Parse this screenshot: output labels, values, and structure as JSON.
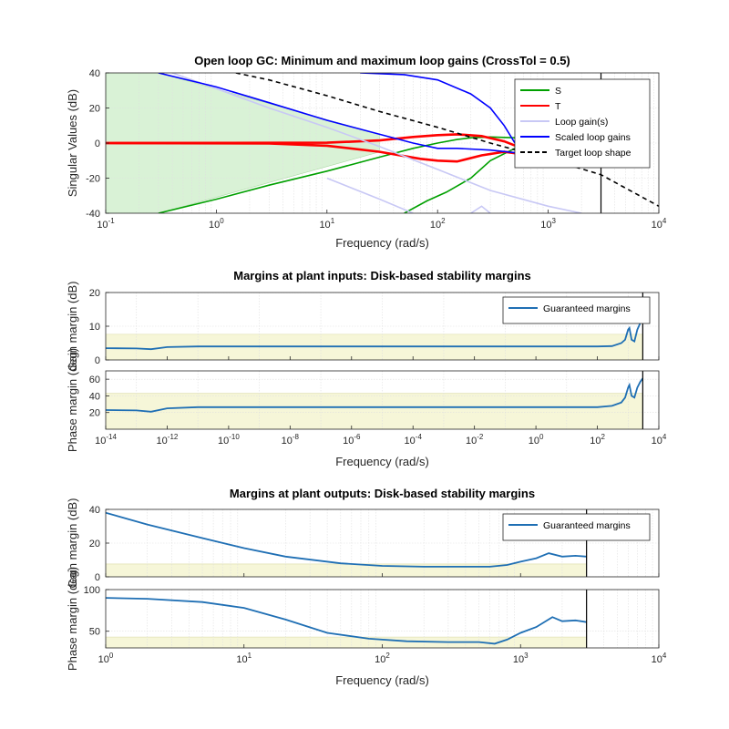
{
  "colors": {
    "S": "#00a000",
    "T": "#ff0000",
    "loop_gain": "#c8c8f5",
    "scaled_loop": "#0000ff",
    "target": "#000000",
    "margin": "#1f6fb4",
    "green_fill": "#d9f2d6",
    "yellow_fill": "#f6f6d8",
    "red_fill": "#f7d7d7"
  },
  "chart_data": [
    {
      "type": "line",
      "title": "Open loop GC: Minimum and maximum loop gains (CrossTol = 0.5)",
      "xlabel": "Frequency (rad/s)",
      "ylabel": "Singular Values (dB)",
      "xscale": "log",
      "xlim": [
        0.1,
        10000
      ],
      "ylim": [
        -40,
        40
      ],
      "xticks": [
        {
          "v": 0.1,
          "b": "10",
          "e": "-1"
        },
        {
          "v": 1,
          "b": "10",
          "e": "0"
        },
        {
          "v": 10,
          "b": "10",
          "e": "1"
        },
        {
          "v": 100,
          "b": "10",
          "e": "2"
        },
        {
          "v": 1000,
          "b": "10",
          "e": "3"
        },
        {
          "v": 10000,
          "b": "10",
          "e": "4"
        }
      ],
      "yticks": [
        {
          "v": -40,
          "t": "-40"
        },
        {
          "v": -20,
          "t": "-20"
        },
        {
          "v": 0,
          "t": "0"
        },
        {
          "v": 20,
          "t": "20"
        },
        {
          "v": 40,
          "t": "40"
        }
      ],
      "legend_placement": "top-right",
      "bandwidth_limit": 3000,
      "series": [
        {
          "name": "S",
          "color_key": "S",
          "lines": [
            [
              [
                0.3,
                -40
              ],
              [
                1,
                -32
              ],
              [
                3,
                -24
              ],
              [
                10,
                -16
              ],
              [
                30,
                -8
              ],
              [
                60,
                -3
              ],
              [
                100,
                0
              ],
              [
                150,
                2
              ],
              [
                200,
                3
              ],
              [
                300,
                3.5
              ],
              [
                500,
                3
              ],
              [
                1000,
                2
              ],
              [
                2000,
                2
              ],
              [
                3000,
                1
              ]
            ],
            [
              [
                50,
                -40
              ],
              [
                80,
                -33
              ],
              [
                120,
                -28
              ],
              [
                200,
                -20
              ],
              [
                300,
                -10
              ],
              [
                500,
                -3
              ],
              [
                1000,
                -2
              ],
              [
                2000,
                -2
              ],
              [
                3000,
                -1
              ]
            ]
          ]
        },
        {
          "name": "T",
          "color_key": "T",
          "lines": [
            [
              [
                0.1,
                0
              ],
              [
                10,
                0.2
              ],
              [
                30,
                1.5
              ],
              [
                60,
                3.5
              ],
              [
                100,
                4.5
              ],
              [
                150,
                5
              ],
              [
                250,
                4
              ],
              [
                400,
                1
              ],
              [
                700,
                -5
              ],
              [
                1000,
                -8
              ],
              [
                1500,
                -6
              ],
              [
                2000,
                -3
              ],
              [
                3000,
                -2
              ]
            ],
            [
              [
                0.1,
                0
              ],
              [
                3,
                -0.2
              ],
              [
                10,
                -1.5
              ],
              [
                30,
                -5
              ],
              [
                70,
                -9
              ],
              [
                100,
                -10
              ],
              [
                150,
                -10.5
              ],
              [
                250,
                -7
              ],
              [
                400,
                -5
              ],
              [
                700,
                -7
              ],
              [
                1000,
                -10
              ],
              [
                1500,
                -9
              ],
              [
                2000,
                -6
              ],
              [
                3000,
                -4
              ]
            ]
          ]
        },
        {
          "name": "Loop gain(s)",
          "color_key": "loop_gain",
          "lines": [
            [
              [
                0.4,
                40
              ],
              [
                1,
                31
              ],
              [
                3,
                20
              ],
              [
                10,
                9
              ],
              [
                30,
                -2
              ],
              [
                100,
                -15
              ],
              [
                300,
                -27
              ],
              [
                1000,
                -36
              ],
              [
                2000,
                -40
              ]
            ],
            [
              [
                10,
                -20
              ],
              [
                30,
                -32
              ],
              [
                60,
                -40
              ]
            ],
            [
              [
                200,
                -40
              ],
              [
                250,
                -36
              ],
              [
                300,
                -40
              ]
            ]
          ]
        },
        {
          "name": "Scaled loop gains",
          "color_key": "scaled_loop",
          "lines": [
            [
              [
                0.3,
                40
              ],
              [
                1,
                32
              ],
              [
                3,
                23
              ],
              [
                10,
                13
              ],
              [
                30,
                5
              ],
              [
                60,
                0
              ],
              [
                100,
                -3
              ],
              [
                150,
                -3
              ],
              [
                300,
                -4
              ],
              [
                600,
                -6
              ],
              [
                1000,
                -8
              ],
              [
                2000,
                -10
              ],
              [
                3000,
                -12
              ]
            ],
            [
              [
                20,
                40
              ],
              [
                50,
                39
              ],
              [
                100,
                36
              ],
              [
                200,
                28
              ],
              [
                300,
                20
              ],
              [
                400,
                10
              ],
              [
                500,
                0
              ],
              [
                700,
                -5
              ],
              [
                1000,
                -7
              ],
              [
                2000,
                -8
              ],
              [
                3000,
                -9
              ]
            ]
          ]
        },
        {
          "name": "Target loop shape",
          "color_key": "target",
          "dashed": true,
          "lines": [
            [
              [
                1.5,
                40
              ],
              [
                3,
                36
              ],
              [
                10,
                27
              ],
              [
                30,
                18
              ],
              [
                100,
                9
              ],
              [
                300,
                0
              ],
              [
                1000,
                -9
              ],
              [
                3000,
                -18
              ],
              [
                10000,
                -36
              ]
            ]
          ]
        }
      ]
    },
    {
      "type": "line",
      "title": "Margins at plant inputs: Disk-based stability margins",
      "xlabel": "Frequency (rad/s)",
      "xscale": "log",
      "xlim": [
        1e-14,
        10000
      ],
      "bandwidth_limit": 3000,
      "xticks": [
        {
          "v": 1e-14,
          "b": "10",
          "e": "-14"
        },
        {
          "v": 1e-12,
          "b": "10",
          "e": "-12"
        },
        {
          "v": 1e-10,
          "b": "10",
          "e": "-10"
        },
        {
          "v": 1e-08,
          "b": "10",
          "e": "-8"
        },
        {
          "v": 1e-06,
          "b": "10",
          "e": "-6"
        },
        {
          "v": 0.0001,
          "b": "10",
          "e": "-4"
        },
        {
          "v": 0.01,
          "b": "10",
          "e": "-2"
        },
        {
          "v": 1,
          "b": "10",
          "e": "0"
        },
        {
          "v": 100,
          "b": "10",
          "e": "2"
        },
        {
          "v": 10000,
          "b": "10",
          "e": "4"
        }
      ],
      "legend_placement": "top-right",
      "panels": [
        {
          "ylabel": "Gain margin (dB)",
          "ylim": [
            0,
            20
          ],
          "yticks": [
            {
              "v": 0,
              "t": "0"
            },
            {
              "v": 10,
              "t": "10"
            },
            {
              "v": 20,
              "t": "20"
            }
          ],
          "required_margin": 7.6,
          "series": [
            {
              "name": "Guaranteed margins",
              "color_key": "margin",
              "points": [
                [
                  1e-14,
                  3.5
                ],
                [
                  1e-13,
                  3.4
                ],
                [
                  3e-13,
                  3.2
                ],
                [
                  1e-12,
                  3.8
                ],
                [
                  1e-11,
                  4.0
                ],
                [
                  1e-08,
                  4.0
                ],
                [
                  1,
                  4.0
                ],
                [
                  100,
                  4.0
                ],
                [
                  300,
                  4.1
                ],
                [
                  600,
                  5
                ],
                [
                  800,
                  6
                ],
                [
                  1000,
                  9
                ],
                [
                  1100,
                  9.5
                ],
                [
                  1300,
                  6
                ],
                [
                  1600,
                  5.5
                ],
                [
                  2000,
                  9
                ],
                [
                  2500,
                  11
                ],
                [
                  3000,
                  12
                ]
              ]
            }
          ]
        },
        {
          "ylabel": "Phase margin (deg)",
          "ylim": [
            0,
            70
          ],
          "yticks": [
            {
              "v": 20,
              "t": "20"
            },
            {
              "v": 40,
              "t": "40"
            },
            {
              "v": 60,
              "t": "60"
            }
          ],
          "required_margin": 43,
          "series": [
            {
              "name": "Guaranteed margins",
              "color_key": "margin",
              "points": [
                [
                  1e-14,
                  23
                ],
                [
                  1e-13,
                  22.5
                ],
                [
                  3e-13,
                  21
                ],
                [
                  1e-12,
                  25
                ],
                [
                  1e-11,
                  26.5
                ],
                [
                  1e-08,
                  26.5
                ],
                [
                  1,
                  26.5
                ],
                [
                  100,
                  26.5
                ],
                [
                  300,
                  28
                ],
                [
                  600,
                  32
                ],
                [
                  800,
                  38
                ],
                [
                  1000,
                  50
                ],
                [
                  1100,
                  53
                ],
                [
                  1300,
                  40
                ],
                [
                  1600,
                  38
                ],
                [
                  2000,
                  50
                ],
                [
                  2500,
                  57
                ],
                [
                  3000,
                  61
                ]
              ]
            }
          ]
        }
      ]
    },
    {
      "type": "line",
      "title": "Margins at plant outputs: Disk-based stability margins",
      "xlabel": "Frequency (rad/s)",
      "xscale": "log",
      "xlim": [
        1,
        10000
      ],
      "bandwidth_limit": 3000,
      "xticks": [
        {
          "v": 1,
          "b": "10",
          "e": "0"
        },
        {
          "v": 10,
          "b": "10",
          "e": "1"
        },
        {
          "v": 100,
          "b": "10",
          "e": "2"
        },
        {
          "v": 1000,
          "b": "10",
          "e": "3"
        },
        {
          "v": 10000,
          "b": "10",
          "e": "4"
        }
      ],
      "legend_placement": "top-right",
      "panels": [
        {
          "ylabel": "Gain margin (dB)",
          "ylim": [
            0,
            40
          ],
          "yticks": [
            {
              "v": 0,
              "t": "0"
            },
            {
              "v": 20,
              "t": "20"
            },
            {
              "v": 40,
              "t": "40"
            }
          ],
          "required_margin": 7.6,
          "series": [
            {
              "name": "Guaranteed margins",
              "color_key": "margin",
              "points": [
                [
                  1,
                  38
                ],
                [
                  2,
                  31
                ],
                [
                  5,
                  23
                ],
                [
                  10,
                  17
                ],
                [
                  20,
                  12
                ],
                [
                  50,
                  8
                ],
                [
                  100,
                  6.5
                ],
                [
                  200,
                  6
                ],
                [
                  400,
                  6
                ],
                [
                  600,
                  6
                ],
                [
                  800,
                  7
                ],
                [
                  1000,
                  9
                ],
                [
                  1300,
                  11
                ],
                [
                  1600,
                  14
                ],
                [
                  2000,
                  12
                ],
                [
                  2500,
                  12.5
                ],
                [
                  3000,
                  12
                ]
              ]
            }
          ]
        },
        {
          "ylabel": "Phase margin (deg)",
          "ylim": [
            30,
            100
          ],
          "yticks": [
            {
              "v": 50,
              "t": "50"
            },
            {
              "v": 100,
              "t": "100"
            }
          ],
          "required_margin": 43,
          "series": [
            {
              "name": "Guaranteed margins",
              "color_key": "margin",
              "points": [
                [
                  1,
                  90
                ],
                [
                  2,
                  89
                ],
                [
                  5,
                  85
                ],
                [
                  10,
                  78
                ],
                [
                  20,
                  64
                ],
                [
                  40,
                  48
                ],
                [
                  80,
                  41
                ],
                [
                  150,
                  38
                ],
                [
                  300,
                  37
                ],
                [
                  500,
                  37
                ],
                [
                  650,
                  35
                ],
                [
                  800,
                  40
                ],
                [
                  1000,
                  48
                ],
                [
                  1300,
                  55
                ],
                [
                  1700,
                  67
                ],
                [
                  2000,
                  62
                ],
                [
                  2500,
                  63
                ],
                [
                  3000,
                  61
                ]
              ]
            }
          ]
        }
      ]
    }
  ]
}
